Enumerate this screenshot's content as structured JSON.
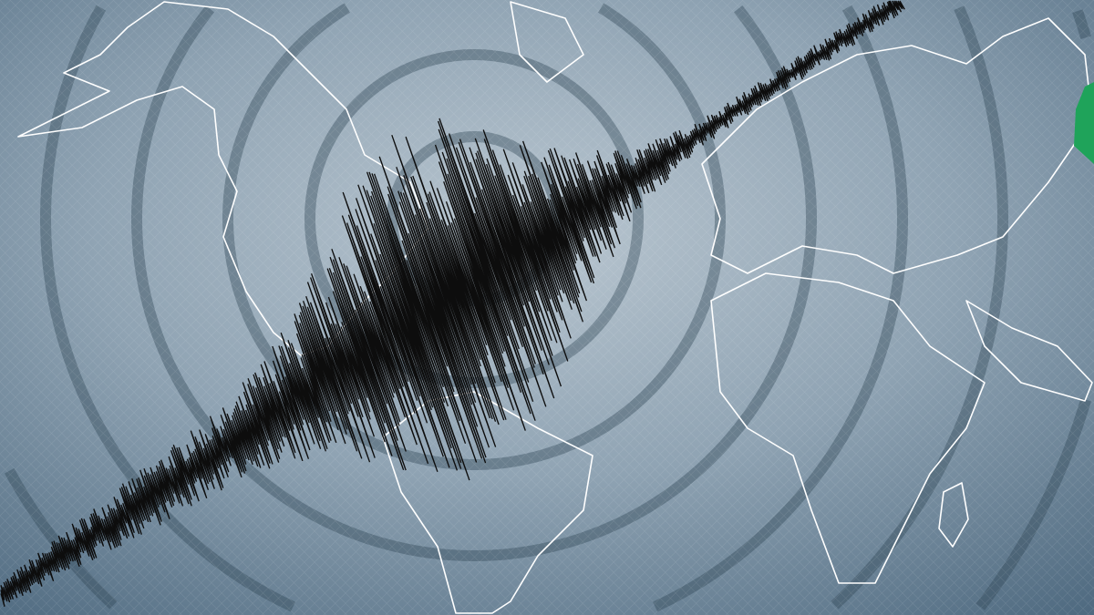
{
  "image": {
    "subject": "seismograph-trace-over-world-map",
    "colors": {
      "background_light": "#b9c6d0",
      "background_mid": "#8fa3b3",
      "background_dark": "#4f6a80",
      "coastline": "#ffffff",
      "trace": "#0d0d0d",
      "marker": "#1fa35a"
    }
  }
}
